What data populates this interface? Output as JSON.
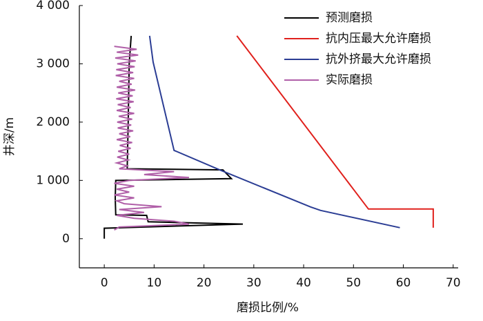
{
  "chart_data": {
    "type": "line",
    "x_label": "磨损比例/%",
    "y_label": "井深/m",
    "xlim": [
      -5,
      71
    ],
    "ylim": [
      -500,
      4000
    ],
    "xticks": [
      0,
      10,
      20,
      30,
      40,
      50,
      60,
      70
    ],
    "yticks": [
      0,
      {
        "value": 1000,
        "label": "1 000"
      },
      {
        "value": 2000,
        "label": "2 000"
      },
      {
        "value": 3000,
        "label": "3 000"
      },
      {
        "value": 4000,
        "label": "4 000"
      }
    ],
    "legend": "upper right",
    "series": [
      {
        "name": "预测磨损",
        "color": "#000000",
        "x": [
          5.4,
          5,
          4.8,
          4.6,
          23.8,
          25.5,
          2.3,
          2.2,
          2.3,
          8.5,
          8.8,
          27.8,
          0,
          0
        ],
        "values": [
          3480,
          3000,
          2000,
          1200,
          1180,
          1030,
          1000,
          700,
          410,
          400,
          290,
          250,
          180,
          0
        ]
      },
      {
        "name": "抗内压最大允许磨损",
        "color": "#e0201c",
        "x": [
          26.6,
          53,
          66,
          66
        ],
        "values": [
          3480,
          509,
          509,
          189
        ]
      },
      {
        "name": "抗外挤最大允许磨损",
        "color": "#2b3d94",
        "x": [
          9.1,
          9.8,
          14,
          23.4,
          41.4,
          43.4,
          59.3
        ],
        "values": [
          3480,
          3030,
          1515,
          1172,
          544,
          485,
          189
        ]
      },
      {
        "name": "实际磨损",
        "color": "#b05fa8",
        "x": [
          2,
          6.5,
          2.5,
          6.8,
          2.2,
          6.3,
          2.6,
          6.1,
          2.4,
          5.8,
          2.3,
          6.0,
          3.0,
          5.5,
          2.5,
          6.2,
          2.8,
          5.7,
          2.4,
          5.9,
          2.7,
          5.3,
          2.5,
          6.0,
          2.9,
          5.6,
          2.6,
          5.4,
          2.7,
          5.8,
          3.0,
          5.2,
          2.5,
          5.6,
          3.1,
          5.3,
          2.8,
          5.0,
          2.6,
          4.8,
          2.5,
          4.6,
          3.0,
          14,
          8,
          17,
          5,
          2,
          6,
          2.5,
          5,
          2.0,
          6,
          2.5,
          4,
          11.5,
          3,
          8,
          2.5,
          6,
          14,
          17,
          3,
          2
        ],
        "values": [
          3300,
          3250,
          3200,
          3150,
          3100,
          3050,
          3000,
          2950,
          2900,
          2850,
          2800,
          2750,
          2700,
          2650,
          2600,
          2550,
          2500,
          2450,
          2400,
          2350,
          2300,
          2250,
          2200,
          2150,
          2100,
          2050,
          2000,
          1950,
          1900,
          1850,
          1800,
          1750,
          1700,
          1650,
          1600,
          1550,
          1500,
          1450,
          1400,
          1350,
          1300,
          1250,
          1200,
          1150,
          1100,
          1050,
          1000,
          950,
          900,
          850,
          800,
          750,
          700,
          650,
          600,
          550,
          500,
          450,
          400,
          350,
          300,
          250,
          200,
          150
        ]
      }
    ]
  }
}
